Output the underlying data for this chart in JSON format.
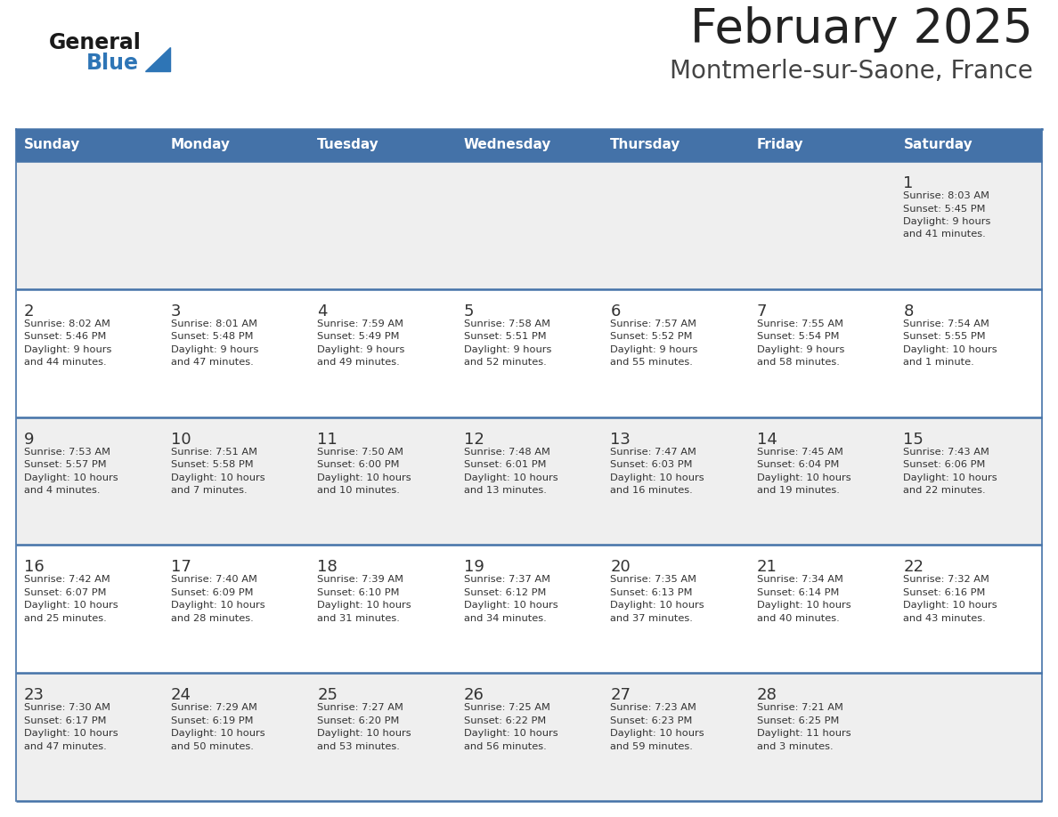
{
  "title": "February 2025",
  "subtitle": "Montmerle-sur-Saone, France",
  "days_of_week": [
    "Sunday",
    "Monday",
    "Tuesday",
    "Wednesday",
    "Thursday",
    "Friday",
    "Saturday"
  ],
  "header_bg": "#4472A8",
  "header_text": "#FFFFFF",
  "row_bg_odd": "#EFEFEF",
  "row_bg_even": "#FFFFFF",
  "cell_border": "#4472A8",
  "day_num_color": "#333333",
  "info_text_color": "#333333",
  "title_color": "#222222",
  "subtitle_color": "#444444",
  "logo_general_color": "#1a1a1a",
  "logo_blue_color": "#2E75B6",
  "calendar_data": [
    [
      null,
      null,
      null,
      null,
      null,
      null,
      {
        "day": 1,
        "sunrise": "8:03 AM",
        "sunset": "5:45 PM",
        "daylight": "9 hours and 41 minutes."
      }
    ],
    [
      {
        "day": 2,
        "sunrise": "8:02 AM",
        "sunset": "5:46 PM",
        "daylight": "9 hours and 44 minutes."
      },
      {
        "day": 3,
        "sunrise": "8:01 AM",
        "sunset": "5:48 PM",
        "daylight": "9 hours and 47 minutes."
      },
      {
        "day": 4,
        "sunrise": "7:59 AM",
        "sunset": "5:49 PM",
        "daylight": "9 hours and 49 minutes."
      },
      {
        "day": 5,
        "sunrise": "7:58 AM",
        "sunset": "5:51 PM",
        "daylight": "9 hours and 52 minutes."
      },
      {
        "day": 6,
        "sunrise": "7:57 AM",
        "sunset": "5:52 PM",
        "daylight": "9 hours and 55 minutes."
      },
      {
        "day": 7,
        "sunrise": "7:55 AM",
        "sunset": "5:54 PM",
        "daylight": "9 hours and 58 minutes."
      },
      {
        "day": 8,
        "sunrise": "7:54 AM",
        "sunset": "5:55 PM",
        "daylight": "10 hours and 1 minute."
      }
    ],
    [
      {
        "day": 9,
        "sunrise": "7:53 AM",
        "sunset": "5:57 PM",
        "daylight": "10 hours and 4 minutes."
      },
      {
        "day": 10,
        "sunrise": "7:51 AM",
        "sunset": "5:58 PM",
        "daylight": "10 hours and 7 minutes."
      },
      {
        "day": 11,
        "sunrise": "7:50 AM",
        "sunset": "6:00 PM",
        "daylight": "10 hours and 10 minutes."
      },
      {
        "day": 12,
        "sunrise": "7:48 AM",
        "sunset": "6:01 PM",
        "daylight": "10 hours and 13 minutes."
      },
      {
        "day": 13,
        "sunrise": "7:47 AM",
        "sunset": "6:03 PM",
        "daylight": "10 hours and 16 minutes."
      },
      {
        "day": 14,
        "sunrise": "7:45 AM",
        "sunset": "6:04 PM",
        "daylight": "10 hours and 19 minutes."
      },
      {
        "day": 15,
        "sunrise": "7:43 AM",
        "sunset": "6:06 PM",
        "daylight": "10 hours and 22 minutes."
      }
    ],
    [
      {
        "day": 16,
        "sunrise": "7:42 AM",
        "sunset": "6:07 PM",
        "daylight": "10 hours and 25 minutes."
      },
      {
        "day": 17,
        "sunrise": "7:40 AM",
        "sunset": "6:09 PM",
        "daylight": "10 hours and 28 minutes."
      },
      {
        "day": 18,
        "sunrise": "7:39 AM",
        "sunset": "6:10 PM",
        "daylight": "10 hours and 31 minutes."
      },
      {
        "day": 19,
        "sunrise": "7:37 AM",
        "sunset": "6:12 PM",
        "daylight": "10 hours and 34 minutes."
      },
      {
        "day": 20,
        "sunrise": "7:35 AM",
        "sunset": "6:13 PM",
        "daylight": "10 hours and 37 minutes."
      },
      {
        "day": 21,
        "sunrise": "7:34 AM",
        "sunset": "6:14 PM",
        "daylight": "10 hours and 40 minutes."
      },
      {
        "day": 22,
        "sunrise": "7:32 AM",
        "sunset": "6:16 PM",
        "daylight": "10 hours and 43 minutes."
      }
    ],
    [
      {
        "day": 23,
        "sunrise": "7:30 AM",
        "sunset": "6:17 PM",
        "daylight": "10 hours and 47 minutes."
      },
      {
        "day": 24,
        "sunrise": "7:29 AM",
        "sunset": "6:19 PM",
        "daylight": "10 hours and 50 minutes."
      },
      {
        "day": 25,
        "sunrise": "7:27 AM",
        "sunset": "6:20 PM",
        "daylight": "10 hours and 53 minutes."
      },
      {
        "day": 26,
        "sunrise": "7:25 AM",
        "sunset": "6:22 PM",
        "daylight": "10 hours and 56 minutes."
      },
      {
        "day": 27,
        "sunrise": "7:23 AM",
        "sunset": "6:23 PM",
        "daylight": "10 hours and 59 minutes."
      },
      {
        "day": 28,
        "sunrise": "7:21 AM",
        "sunset": "6:25 PM",
        "daylight": "11 hours and 3 minutes."
      },
      null
    ]
  ],
  "fig_width": 11.88,
  "fig_height": 9.18,
  "dpi": 100
}
